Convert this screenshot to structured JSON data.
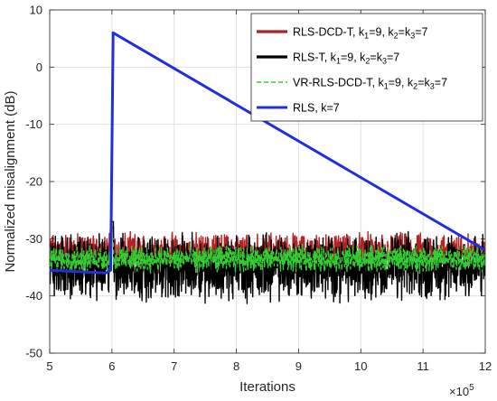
{
  "chart_data": {
    "type": "line",
    "xlabel": "Iterations",
    "ylabel": "Normalized misalignment (dB)",
    "x_exponent_label": "×10",
    "x_exponent_power": "5",
    "xlim": [
      5,
      12
    ],
    "ylim": [
      -50,
      10
    ],
    "xticks": [
      "5",
      "6",
      "7",
      "8",
      "9",
      "10",
      "11",
      "12"
    ],
    "yticks": [
      "-50",
      "-40",
      "-30",
      "-20",
      "-10",
      "0",
      "10"
    ],
    "grid": true,
    "legend_position": "top-right",
    "change_point_x": 6,
    "series": [
      {
        "name": "RLS-DCD-T, k1=9, k2=k3=7",
        "legend_parts": [
          "RLS-DCD-T, k",
          "1",
          "=9, k",
          "2",
          "=k",
          "3",
          "=7"
        ],
        "color": "#b22222",
        "style": "solid",
        "mean_before": -32.5,
        "mean_after": -32.5,
        "fluctuation": 3.0,
        "peak_at_change": -28
      },
      {
        "name": "RLS-T, k1=9, k2=k3=7",
        "legend_parts": [
          "RLS-T, k",
          "1",
          "=9, k",
          "2",
          "=k",
          "3",
          "=7"
        ],
        "color": "#000000",
        "style": "solid",
        "mean_before": -35,
        "mean_after": -35,
        "fluctuation": 5.0,
        "peak_at_change": -27
      },
      {
        "name": "VR-RLS-DCD-T, k1=9, k2=k3=7",
        "legend_parts": [
          "VR-RLS-DCD-T, k",
          "1",
          "=9, k",
          "2",
          "=k",
          "3",
          "=7"
        ],
        "color": "#32cd32",
        "style": "dashed",
        "mean_before": -33.5,
        "mean_after": -33.5,
        "fluctuation": 2.0,
        "peak_at_change": -30
      },
      {
        "name": "RLS, k=7",
        "legend_parts": [
          "RLS, k=7"
        ],
        "color": "#1f2fe0",
        "style": "solid",
        "x": [
          5,
          5.9,
          5.98,
          6.02,
          12
        ],
        "y": [
          -35.5,
          -36,
          -35.5,
          6,
          -32
        ]
      }
    ]
  }
}
